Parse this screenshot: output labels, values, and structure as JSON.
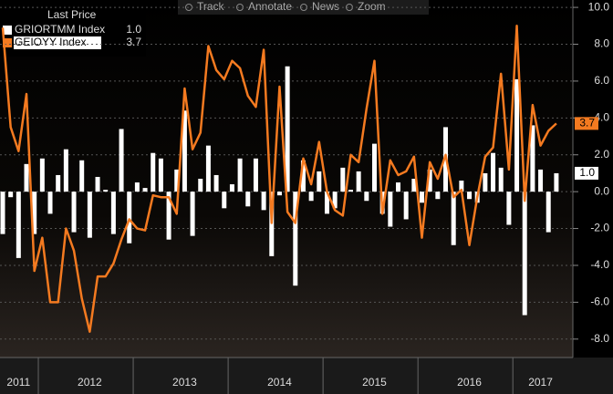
{
  "toolbar": [
    "Track",
    "Annotate",
    "News",
    "Zoom"
  ],
  "chart_data": {
    "type": "bar-line",
    "legend_title": "Last Price",
    "categories": [
      null,
      null,
      "2011",
      null,
      null,
      null,
      null,
      null,
      null,
      null,
      null,
      "2012",
      null,
      null,
      null,
      null,
      null,
      null,
      null,
      null,
      null,
      null,
      null,
      "2013",
      null,
      null,
      null,
      null,
      null,
      null,
      null,
      null,
      null,
      null,
      null,
      "2014",
      null,
      null,
      null,
      null,
      null,
      null,
      null,
      null,
      null,
      null,
      null,
      "2015",
      null,
      null,
      null,
      null,
      null,
      null,
      null,
      null,
      null,
      null,
      null,
      "2016",
      null,
      null,
      null,
      null,
      null,
      null,
      null,
      null,
      "2017",
      null,
      null
    ],
    "series": [
      {
        "name": "GRIORTMM Index",
        "type": "bar",
        "color": "#ffffff",
        "values": [
          -2.3,
          -0.3,
          -3.6,
          1.5,
          -2.3,
          1.8,
          -1.2,
          0.9,
          2.3,
          -2.2,
          1.7,
          -2.5,
          0.8,
          0.1,
          -2.3,
          3.4,
          -2.8,
          0.5,
          0.2,
          2.1,
          1.8,
          -2.6,
          1.2,
          4.4,
          -2.4,
          0.7,
          2.5,
          0.9,
          -0.9,
          0.4,
          1.8,
          -0.8,
          1.8,
          -1.0,
          -3.5,
          -0.2,
          6.8,
          -5.1,
          1.7,
          -0.5,
          1.1,
          -1.2,
          -0.9,
          1.3,
          0.1,
          1.1,
          -0.5,
          2.6,
          -1.2,
          -1.9,
          0.5,
          -1.5,
          0.7,
          -0.6,
          1.2,
          -0.4,
          3.5,
          -2.9,
          0.6,
          -0.4,
          -0.6,
          1.0,
          2.1,
          1.3,
          -1.8,
          6.1,
          -6.7,
          3.6,
          1.2,
          -2.2,
          1.0
        ],
        "value_labels": [
          null,
          null,
          null,
          null,
          null,
          null,
          null,
          null,
          null,
          null,
          null,
          null,
          null,
          null,
          null,
          null,
          null,
          null,
          null,
          null,
          null,
          null,
          null,
          null,
          null,
          null,
          null,
          null,
          null,
          null,
          null,
          null,
          null,
          null,
          null,
          null,
          null,
          null,
          null,
          null,
          null,
          null,
          null,
          null,
          null,
          null,
          null,
          null,
          null,
          null,
          null,
          null,
          null,
          null,
          null,
          null,
          null,
          null,
          null,
          null,
          null,
          null,
          null,
          null,
          null,
          null,
          null,
          null,
          null,
          null,
          "1.0"
        ]
      },
      {
        "name": "GEIOYY Index",
        "type": "line",
        "color": "#f47a20",
        "values": [
          8.9,
          3.5,
          2.2,
          5.3,
          -4.3,
          -2.5,
          -6.0,
          -6.0,
          -2.0,
          -3.2,
          -5.8,
          -7.6,
          -4.6,
          -4.6,
          -3.9,
          -2.6,
          -1.5,
          -2.0,
          -2.1,
          -0.2,
          -0.3,
          -0.3,
          -1.2,
          5.6,
          2.3,
          3.2,
          7.9,
          6.6,
          6.1,
          7.1,
          6.7,
          5.2,
          4.6,
          7.7,
          -1.7,
          5.7,
          -1.1,
          -1.7,
          1.8,
          0.4,
          2.7,
          0.0,
          -1.0,
          -1.3,
          2.0,
          1.6,
          4.5,
          7.1,
          -1.2,
          1.7,
          0.9,
          1.1,
          1.9,
          -2.5,
          1.6,
          0.7,
          2.0,
          -0.3,
          0.1,
          -2.9,
          -0.3,
          1.9,
          2.4,
          6.4,
          1.2,
          9.0,
          -0.5,
          4.7,
          2.5,
          3.3,
          3.7
        ],
        "value_labels": [
          null,
          null,
          null,
          null,
          null,
          null,
          null,
          null,
          null,
          null,
          null,
          null,
          null,
          null,
          null,
          null,
          null,
          null,
          null,
          null,
          null,
          null,
          null,
          null,
          null,
          null,
          null,
          null,
          null,
          null,
          null,
          null,
          null,
          null,
          null,
          null,
          null,
          null,
          null,
          null,
          null,
          null,
          null,
          null,
          null,
          null,
          null,
          null,
          null,
          null,
          null,
          null,
          null,
          null,
          null,
          null,
          null,
          null,
          null,
          null,
          null,
          null,
          null,
          null,
          null,
          null,
          null,
          null,
          null,
          null,
          "3.7"
        ]
      }
    ],
    "ylim": [
      -9,
      10.4
    ],
    "yticks": [
      {
        "value": -8,
        "label": "-8.0"
      },
      {
        "value": -6,
        "label": "-6.0"
      },
      {
        "value": -4,
        "label": "-4.0"
      },
      {
        "value": -2,
        "label": "-2.0"
      },
      {
        "value": 0,
        "label": "0.0"
      },
      {
        "value": 2,
        "label": "2.0"
      },
      {
        "value": 4,
        "label": "4.0"
      },
      {
        "value": 6,
        "label": "6.0"
      },
      {
        "value": 8,
        "label": "8.0"
      },
      {
        "value": 10,
        "label": "10.0"
      }
    ],
    "grid": true
  }
}
